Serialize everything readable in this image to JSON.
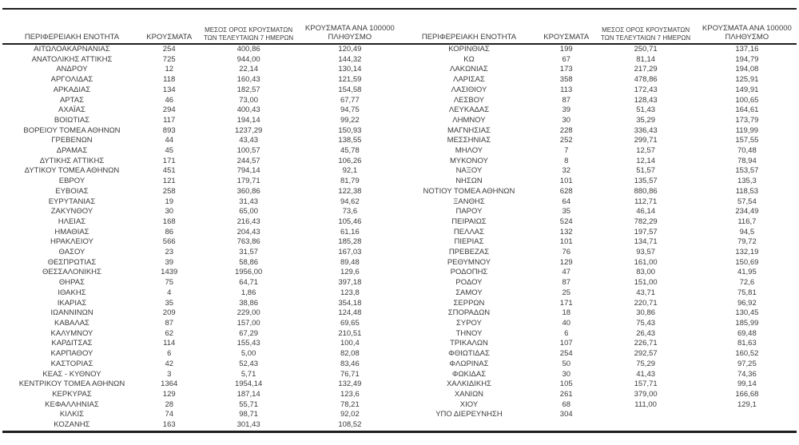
{
  "colors": {
    "text": "#3b3b3b",
    "rule_line": "#1e1e1e",
    "background": "#ffffff"
  },
  "chart_data": {
    "type": "table",
    "title": "",
    "columns": [
      "ΠΕΡΙΦΕΡΕΙΑΚΗ ΕΝΟΤΗΤΑ",
      "ΚΡΟΥΣΜΑΤΑ",
      "ΜΕΣΟΣ ΟΡΟΣ ΚΡΟΥΣΜΑΤΩΝ ΤΩΝ ΤΕΛΕΥΤΑΙΩΝ 7 ΗΜΕΡΩΝ",
      "ΚΡΟΥΣΜΑΤΑ ΑΝΑ 100000 ΠΛΗΘΥΣΜΟ"
    ],
    "header_lines": {
      "region": [
        "ΠΕΡΙΦΕΡΕΙΑΚΗ ΕΝΟΤΗΤΑ"
      ],
      "cases": [
        "ΚΡΟΥΣΜΑΤΑ"
      ],
      "avg7": [
        "ΜΕΣΟΣ ΟΡΟΣ ΚΡΟΥΣΜΑΤΩΝ",
        "ΤΩΝ ΤΕΛΕΥΤΑΙΩΝ 7 ΗΜΕΡΩΝ"
      ],
      "per100k": [
        "ΚΡΟΥΣΜΑΤΑ ΑΝΑ 100000",
        "ΠΛΗΘΥΣΜΟ"
      ]
    },
    "left_rows": [
      [
        "ΑΙΤΩΛΟΑΚΑΡΝΑΝΙΑΣ",
        "254",
        "400,86",
        "120,49"
      ],
      [
        "ΑΝΑΤΟΛΙΚΗΣ ΑΤΤΙΚΗΣ",
        "725",
        "944,00",
        "144,32"
      ],
      [
        "ΑΝΔΡΟΥ",
        "12",
        "22,14",
        "130,14"
      ],
      [
        "ΑΡΓΟΛΙΔΑΣ",
        "118",
        "160,43",
        "121,59"
      ],
      [
        "ΑΡΚΑΔΙΑΣ",
        "134",
        "182,57",
        "154,58"
      ],
      [
        "ΑΡΤΑΣ",
        "46",
        "73,00",
        "67,77"
      ],
      [
        "ΑΧΑΪΑΣ",
        "294",
        "400,43",
        "94,75"
      ],
      [
        "ΒΟΙΩΤΙΑΣ",
        "117",
        "194,14",
        "99,22"
      ],
      [
        "ΒΟΡΕΙΟΥ ΤΟΜΕΑ ΑΘΗΝΩΝ",
        "893",
        "1237,29",
        "150,93"
      ],
      [
        "ΓΡΕΒΕΝΩΝ",
        "44",
        "43,43",
        "138,55"
      ],
      [
        "ΔΡΑΜΑΣ",
        "45",
        "100,57",
        "45,78"
      ],
      [
        "ΔΥΤΙΚΗΣ ΑΤΤΙΚΗΣ",
        "171",
        "244,57",
        "106,26"
      ],
      [
        "ΔΥΤΙΚΟΥ ΤΟΜΕΑ ΑΘΗΝΩΝ",
        "451",
        "794,14",
        "92,1"
      ],
      [
        "ΕΒΡΟΥ",
        "121",
        "179,71",
        "81,79"
      ],
      [
        "ΕΥΒΟΙΑΣ",
        "258",
        "360,86",
        "122,38"
      ],
      [
        "ΕΥΡΥΤΑΝΙΑΣ",
        "19",
        "31,43",
        "94,62"
      ],
      [
        "ΖΑΚΥΝΘΟΥ",
        "30",
        "65,00",
        "73,6"
      ],
      [
        "ΗΛΕΙΑΣ",
        "168",
        "216,43",
        "105,46"
      ],
      [
        "ΗΜΑΘΙΑΣ",
        "86",
        "204,43",
        "61,16"
      ],
      [
        "ΗΡΑΚΛΕΙΟΥ",
        "566",
        "763,86",
        "185,28"
      ],
      [
        "ΘΑΣΟΥ",
        "23",
        "31,57",
        "167,03"
      ],
      [
        "ΘΕΣΠΡΩΤΙΑΣ",
        "39",
        "58,86",
        "89,48"
      ],
      [
        "ΘΕΣΣΑΛΟΝΙΚΗΣ",
        "1439",
        "1956,00",
        "129,6"
      ],
      [
        "ΘΗΡΑΣ",
        "75",
        "64,71",
        "397,18"
      ],
      [
        "ΙΘΑΚΗΣ",
        "4",
        "1,86",
        "123,8"
      ],
      [
        "ΙΚΑΡΙΑΣ",
        "35",
        "38,86",
        "354,18"
      ],
      [
        "ΙΩΑΝΝΙΝΩΝ",
        "209",
        "229,00",
        "124,48"
      ],
      [
        "ΚΑΒΑΛΑΣ",
        "87",
        "157,00",
        "69,65"
      ],
      [
        "ΚΑΛΥΜΝΟΥ",
        "62",
        "67,29",
        "210,51"
      ],
      [
        "ΚΑΡΔΙΤΣΑΣ",
        "114",
        "155,43",
        "100,4"
      ],
      [
        "ΚΑΡΠΑΘΟΥ",
        "6",
        "5,00",
        "82,08"
      ],
      [
        "ΚΑΣΤΟΡΙΑΣ",
        "42",
        "52,43",
        "83,46"
      ],
      [
        "ΚΕΑΣ - ΚΥΘΝΟΥ",
        "3",
        "5,71",
        "76,71"
      ],
      [
        "ΚΕΝΤΡΙΚΟΥ ΤΟΜΕΑ ΑΘΗΝΩΝ",
        "1364",
        "1954,14",
        "132,49"
      ],
      [
        "ΚΕΡΚΥΡΑΣ",
        "129",
        "187,14",
        "123,6"
      ],
      [
        "ΚΕΦΑΛΛΗΝΙΑΣ",
        "28",
        "55,71",
        "78,21"
      ],
      [
        "ΚΙΛΚΙΣ",
        "74",
        "98,71",
        "92,02"
      ],
      [
        "ΚΟΖΑΝΗΣ",
        "163",
        "301,43",
        "108,52"
      ]
    ],
    "right_rows": [
      [
        "ΚΟΡΙΝΘΙΑΣ",
        "199",
        "250,71",
        "137,16"
      ],
      [
        "ΚΩ",
        "67",
        "81,14",
        "194,79"
      ],
      [
        "ΛΑΚΩΝΙΑΣ",
        "173",
        "217,29",
        "194,08"
      ],
      [
        "ΛΑΡΙΣΑΣ",
        "358",
        "478,86",
        "125,91"
      ],
      [
        "ΛΑΣΙΘΙΟΥ",
        "113",
        "172,43",
        "149,91"
      ],
      [
        "ΛΕΣΒΟΥ",
        "87",
        "128,43",
        "100,65"
      ],
      [
        "ΛΕΥΚΑΔΑΣ",
        "39",
        "51,43",
        "164,61"
      ],
      [
        "ΛΗΜΝΟΥ",
        "30",
        "35,29",
        "173,79"
      ],
      [
        "ΜΑΓΝΗΣΙΑΣ",
        "228",
        "336,43",
        "119,99"
      ],
      [
        "ΜΕΣΣΗΝΙΑΣ",
        "252",
        "299,71",
        "157,55"
      ],
      [
        "ΜΗΛΟΥ",
        "7",
        "12,57",
        "70,48"
      ],
      [
        "ΜΥΚΟΝΟΥ",
        "8",
        "12,14",
        "78,94"
      ],
      [
        "ΝΑΞΟΥ",
        "32",
        "51,57",
        "153,57"
      ],
      [
        "ΝΗΣΩΝ",
        "101",
        "135,57",
        "135,3"
      ],
      [
        "ΝΟΤΙΟΥ ΤΟΜΕΑ ΑΘΗΝΩΝ",
        "628",
        "880,86",
        "118,53"
      ],
      [
        "ΞΑΝΘΗΣ",
        "64",
        "112,71",
        "57,54"
      ],
      [
        "ΠΑΡΟΥ",
        "35",
        "46,14",
        "234,49"
      ],
      [
        "ΠΕΙΡΑΙΩΣ",
        "524",
        "782,29",
        "116,7"
      ],
      [
        "ΠΕΛΛΑΣ",
        "132",
        "197,57",
        "94,5"
      ],
      [
        "ΠΙΕΡΙΑΣ",
        "101",
        "134,71",
        "79,72"
      ],
      [
        "ΠΡΕΒΕΖΑΣ",
        "76",
        "93,57",
        "132,19"
      ],
      [
        "ΡΕΘΥΜΝΟΥ",
        "129",
        "161,00",
        "150,69"
      ],
      [
        "ΡΟΔΟΠΗΣ",
        "47",
        "83,00",
        "41,95"
      ],
      [
        "ΡΟΔΟΥ",
        "87",
        "151,00",
        "72,6"
      ],
      [
        "ΣΑΜΟΥ",
        "25",
        "43,71",
        "75,81"
      ],
      [
        "ΣΕΡΡΩΝ",
        "171",
        "220,71",
        "96,92"
      ],
      [
        "ΣΠΟΡΑΔΩΝ",
        "18",
        "30,86",
        "130,45"
      ],
      [
        "ΣΥΡΟΥ",
        "40",
        "75,43",
        "185,99"
      ],
      [
        "ΤΗΝΟΥ",
        "6",
        "26,43",
        "69,48"
      ],
      [
        "ΤΡΙΚΑΛΩΝ",
        "107",
        "226,71",
        "81,63"
      ],
      [
        "ΦΘΙΩΤΙΔΑΣ",
        "254",
        "292,57",
        "160,52"
      ],
      [
        "ΦΛΩΡΙΝΑΣ",
        "50",
        "75,29",
        "97,25"
      ],
      [
        "ΦΩΚΙΔΑΣ",
        "30",
        "41,43",
        "74,36"
      ],
      [
        "ΧΑΛΚΙΔΙΚΗΣ",
        "105",
        "157,71",
        "99,14"
      ],
      [
        "ΧΑΝΙΩΝ",
        "261",
        "379,00",
        "166,68"
      ],
      [
        "ΧΙΟΥ",
        "68",
        "111,00",
        "129,1"
      ],
      [
        "ΥΠΟ ΔΙΕΡΕΥΝΗΣΗ",
        "304",
        "",
        ""
      ]
    ]
  }
}
